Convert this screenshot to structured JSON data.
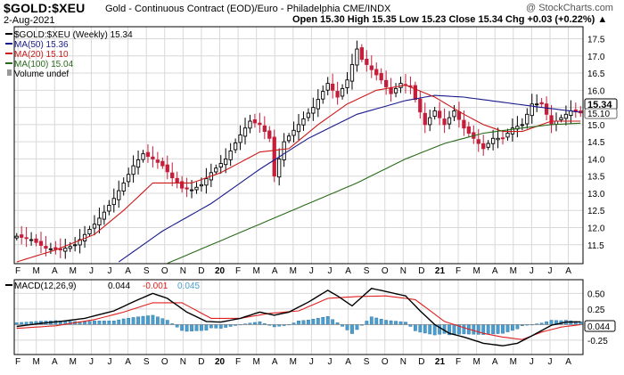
{
  "header": {
    "symbol": "$GOLD:$XEU",
    "name": "Gold - Continuous Contract (EOD)/Euro - Philadelphia CME/INDX",
    "brand": "@ StockCharts.com",
    "date": "2-Aug-2021",
    "ohlc": "Open 15.30  High 15.35  Low 15.23  Close 15.34  Chg +0.03 (+0.22%) ▲"
  },
  "legend": {
    "price": "$GOLD:$XEU (Weekly) 15.34",
    "ma50": "MA(50) 15.36",
    "ma20": "MA(20) 15.10",
    "ma100": "MA(100) 15.04",
    "volume": "Volume undef"
  },
  "macd_legend": {
    "label": "MACD(12,26,9)",
    "macd": "0.044",
    "signal": "-0.001",
    "hist": "0.045"
  },
  "price_tags": {
    "last": "15.34",
    "ma": "15.10"
  },
  "macd_tag": "0.044",
  "colors": {
    "up": "#000000",
    "down": "#c41e3a",
    "ma50": "#1a1a8c",
    "ma20": "#cc1a1a",
    "ma100": "#2a6a1a",
    "macd": "#000000",
    "signal": "#e02020",
    "hist": "#4a9fd0",
    "grid": "#d8d8d8"
  },
  "chart_data": [
    {
      "type": "candlestick",
      "title": "$GOLD:$XEU (Weekly)",
      "x_ticks": [
        "F",
        "M",
        "A",
        "M",
        "J",
        "J",
        "A",
        "S",
        "O",
        "N",
        "D",
        "20",
        "F",
        "M",
        "A",
        "M",
        "J",
        "J",
        "A",
        "S",
        "O",
        "N",
        "D",
        "21",
        "F",
        "M",
        "A",
        "M",
        "J",
        "J",
        "A"
      ],
      "y_ticks": [
        11.5,
        12.0,
        12.5,
        13.0,
        13.5,
        14.0,
        14.5,
        15.0,
        15.5,
        16.0,
        16.5,
        17.0,
        17.5
      ],
      "ylim": [
        10.95,
        17.85
      ],
      "series": [
        {
          "name": "$GOLD:$XEU (Weekly)",
          "anchors": [
            [
              0,
              11.75
            ],
            [
              3,
              11.65
            ],
            [
              6,
              11.4
            ],
            [
              9,
              11.35
            ],
            [
              12,
              11.5
            ],
            [
              14,
              11.8
            ],
            [
              16,
              12.1
            ],
            [
              18,
              12.45
            ],
            [
              20,
              12.85
            ],
            [
              22,
              13.3
            ],
            [
              24,
              13.8
            ],
            [
              26,
              14.15
            ],
            [
              28,
              14.0
            ],
            [
              30,
              13.8
            ],
            [
              32,
              13.45
            ],
            [
              34,
              13.15
            ],
            [
              36,
              13.1
            ],
            [
              38,
              13.25
            ],
            [
              40,
              13.6
            ],
            [
              43,
              14.0
            ],
            [
              46,
              14.7
            ],
            [
              48,
              15.1
            ],
            [
              50,
              15.0
            ],
            [
              52,
              14.6
            ],
            [
              53,
              13.5
            ],
            [
              55,
              14.5
            ],
            [
              58,
              15.0
            ],
            [
              61,
              15.5
            ],
            [
              64,
              16.2
            ],
            [
              66,
              15.8
            ],
            [
              68,
              16.3
            ],
            [
              70,
              17.2
            ],
            [
              71,
              16.9
            ],
            [
              73,
              16.6
            ],
            [
              75,
              16.3
            ],
            [
              77,
              15.9
            ],
            [
              79,
              16.2
            ],
            [
              81,
              16.1
            ],
            [
              84,
              15.0
            ],
            [
              86,
              15.4
            ],
            [
              88,
              15.0
            ],
            [
              90,
              15.4
            ],
            [
              92,
              14.9
            ],
            [
              94,
              14.6
            ],
            [
              96,
              14.3
            ],
            [
              98,
              14.6
            ],
            [
              100,
              14.6
            ],
            [
              102,
              14.9
            ],
            [
              104,
              15.0
            ],
            [
              106,
              15.6
            ],
            [
              108,
              15.6
            ],
            [
              110,
              15.0
            ],
            [
              112,
              15.2
            ],
            [
              114,
              15.4
            ],
            [
              116,
              15.34
            ]
          ]
        },
        {
          "name": "MA(50)",
          "value_last": 15.36,
          "anchors": [
            [
              0,
              10.0
            ],
            [
              20,
              10.9
            ],
            [
              30,
              11.9
            ],
            [
              40,
              12.7
            ],
            [
              50,
              13.7
            ],
            [
              60,
              14.6
            ],
            [
              70,
              15.3
            ],
            [
              80,
              15.7
            ],
            [
              86,
              15.85
            ],
            [
              92,
              15.8
            ],
            [
              100,
              15.65
            ],
            [
              108,
              15.5
            ],
            [
              116,
              15.36
            ]
          ]
        },
        {
          "name": "MA(20)",
          "value_last": 15.1,
          "anchors": [
            [
              0,
              11.0
            ],
            [
              8,
              11.35
            ],
            [
              16,
              11.8
            ],
            [
              22,
              12.5
            ],
            [
              28,
              13.3
            ],
            [
              36,
              13.3
            ],
            [
              42,
              13.6
            ],
            [
              50,
              14.2
            ],
            [
              56,
              14.3
            ],
            [
              62,
              15.0
            ],
            [
              68,
              15.6
            ],
            [
              74,
              16.0
            ],
            [
              80,
              16.15
            ],
            [
              86,
              15.8
            ],
            [
              92,
              15.3
            ],
            [
              96,
              15.0
            ],
            [
              100,
              14.8
            ],
            [
              104,
              14.8
            ],
            [
              110,
              15.1
            ],
            [
              116,
              15.1
            ]
          ]
        },
        {
          "name": "MA(100)",
          "value_last": 15.04,
          "anchors": [
            [
              20,
              10.0
            ],
            [
              30,
              10.9
            ],
            [
              40,
              11.5
            ],
            [
              50,
              12.1
            ],
            [
              60,
              12.7
            ],
            [
              70,
              13.3
            ],
            [
              80,
              14.0
            ],
            [
              88,
              14.45
            ],
            [
              96,
              14.75
            ],
            [
              104,
              14.9
            ],
            [
              110,
              15.0
            ],
            [
              116,
              15.04
            ]
          ]
        }
      ]
    },
    {
      "type": "line",
      "title": "MACD(12,26,9)",
      "y_ticks": [
        0.5,
        0.25,
        0.0,
        -0.25
      ],
      "ylim": [
        -0.48,
        0.72
      ],
      "series": [
        {
          "name": "MACD",
          "value_last": 0.044,
          "anchors": [
            [
              0,
              -0.03
            ],
            [
              5,
              0.02
            ],
            [
              10,
              0.06
            ],
            [
              14,
              0.1
            ],
            [
              20,
              0.22
            ],
            [
              25,
              0.4
            ],
            [
              28,
              0.5
            ],
            [
              31,
              0.42
            ],
            [
              35,
              0.2
            ],
            [
              39,
              0.05
            ],
            [
              42,
              0.04
            ],
            [
              46,
              0.1
            ],
            [
              50,
              0.2
            ],
            [
              53,
              0.15
            ],
            [
              56,
              0.2
            ],
            [
              60,
              0.36
            ],
            [
              64,
              0.55
            ],
            [
              66,
              0.46
            ],
            [
              69,
              0.3
            ],
            [
              73,
              0.58
            ],
            [
              76,
              0.53
            ],
            [
              80,
              0.46
            ],
            [
              83,
              0.22
            ],
            [
              86,
              0.0
            ],
            [
              89,
              -0.14
            ],
            [
              92,
              -0.2
            ],
            [
              96,
              -0.3
            ],
            [
              100,
              -0.34
            ],
            [
              103,
              -0.3
            ],
            [
              106,
              -0.18
            ],
            [
              110,
              -0.01
            ],
            [
              113,
              0.04
            ],
            [
              116,
              0.044
            ]
          ]
        },
        {
          "name": "Signal",
          "value_last": -0.001,
          "anchors": [
            [
              0,
              -0.06
            ],
            [
              8,
              -0.02
            ],
            [
              16,
              0.08
            ],
            [
              22,
              0.2
            ],
            [
              28,
              0.35
            ],
            [
              34,
              0.35
            ],
            [
              40,
              0.1
            ],
            [
              46,
              0.1
            ],
            [
              52,
              0.18
            ],
            [
              58,
              0.22
            ],
            [
              64,
              0.42
            ],
            [
              70,
              0.45
            ],
            [
              76,
              0.46
            ],
            [
              82,
              0.4
            ],
            [
              88,
              0.05
            ],
            [
              92,
              -0.05
            ],
            [
              96,
              -0.14
            ],
            [
              100,
              -0.2
            ],
            [
              104,
              -0.24
            ],
            [
              108,
              -0.12
            ],
            [
              112,
              -0.04
            ],
            [
              116,
              -0.001
            ]
          ]
        },
        {
          "name": "Histogram",
          "value_last": 0.045
        }
      ]
    }
  ]
}
